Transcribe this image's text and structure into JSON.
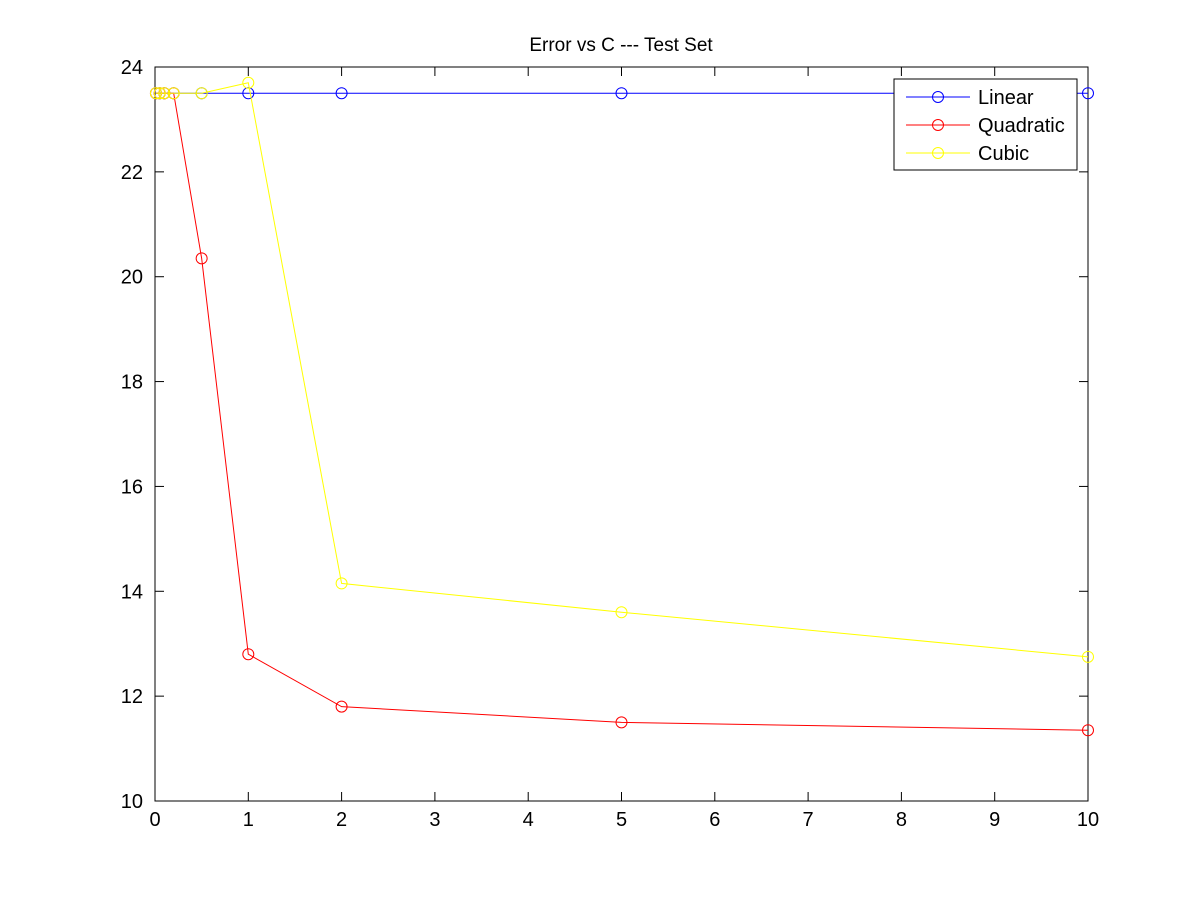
{
  "chart_data": {
    "type": "line",
    "title": "Error vs C --- Test Set",
    "xlabel": "",
    "ylabel": "",
    "xlim": [
      0,
      10
    ],
    "ylim": [
      10,
      24
    ],
    "xticks": [
      0,
      1,
      2,
      3,
      4,
      5,
      6,
      7,
      8,
      9,
      10
    ],
    "yticks": [
      10,
      12,
      14,
      16,
      18,
      20,
      22,
      24
    ],
    "grid": false,
    "legend_position": "top-right",
    "x": [
      0.01,
      0.05,
      0.1,
      0.2,
      0.5,
      1,
      2,
      5,
      10
    ],
    "series": [
      {
        "name": "Linear",
        "color": "#0000ff",
        "marker": "circle",
        "values": [
          23.5,
          23.5,
          23.5,
          23.5,
          23.5,
          23.5,
          23.5,
          23.5,
          23.5
        ]
      },
      {
        "name": "Quadratic",
        "color": "#ff0000",
        "marker": "circle",
        "values": [
          23.5,
          23.5,
          23.5,
          23.5,
          20.35,
          12.8,
          11.8,
          11.5,
          11.35
        ]
      },
      {
        "name": "Cubic",
        "color": "#ffff00",
        "marker": "circle",
        "values": [
          23.5,
          23.5,
          23.5,
          23.5,
          23.5,
          23.7,
          14.15,
          13.6,
          12.75
        ]
      }
    ]
  }
}
